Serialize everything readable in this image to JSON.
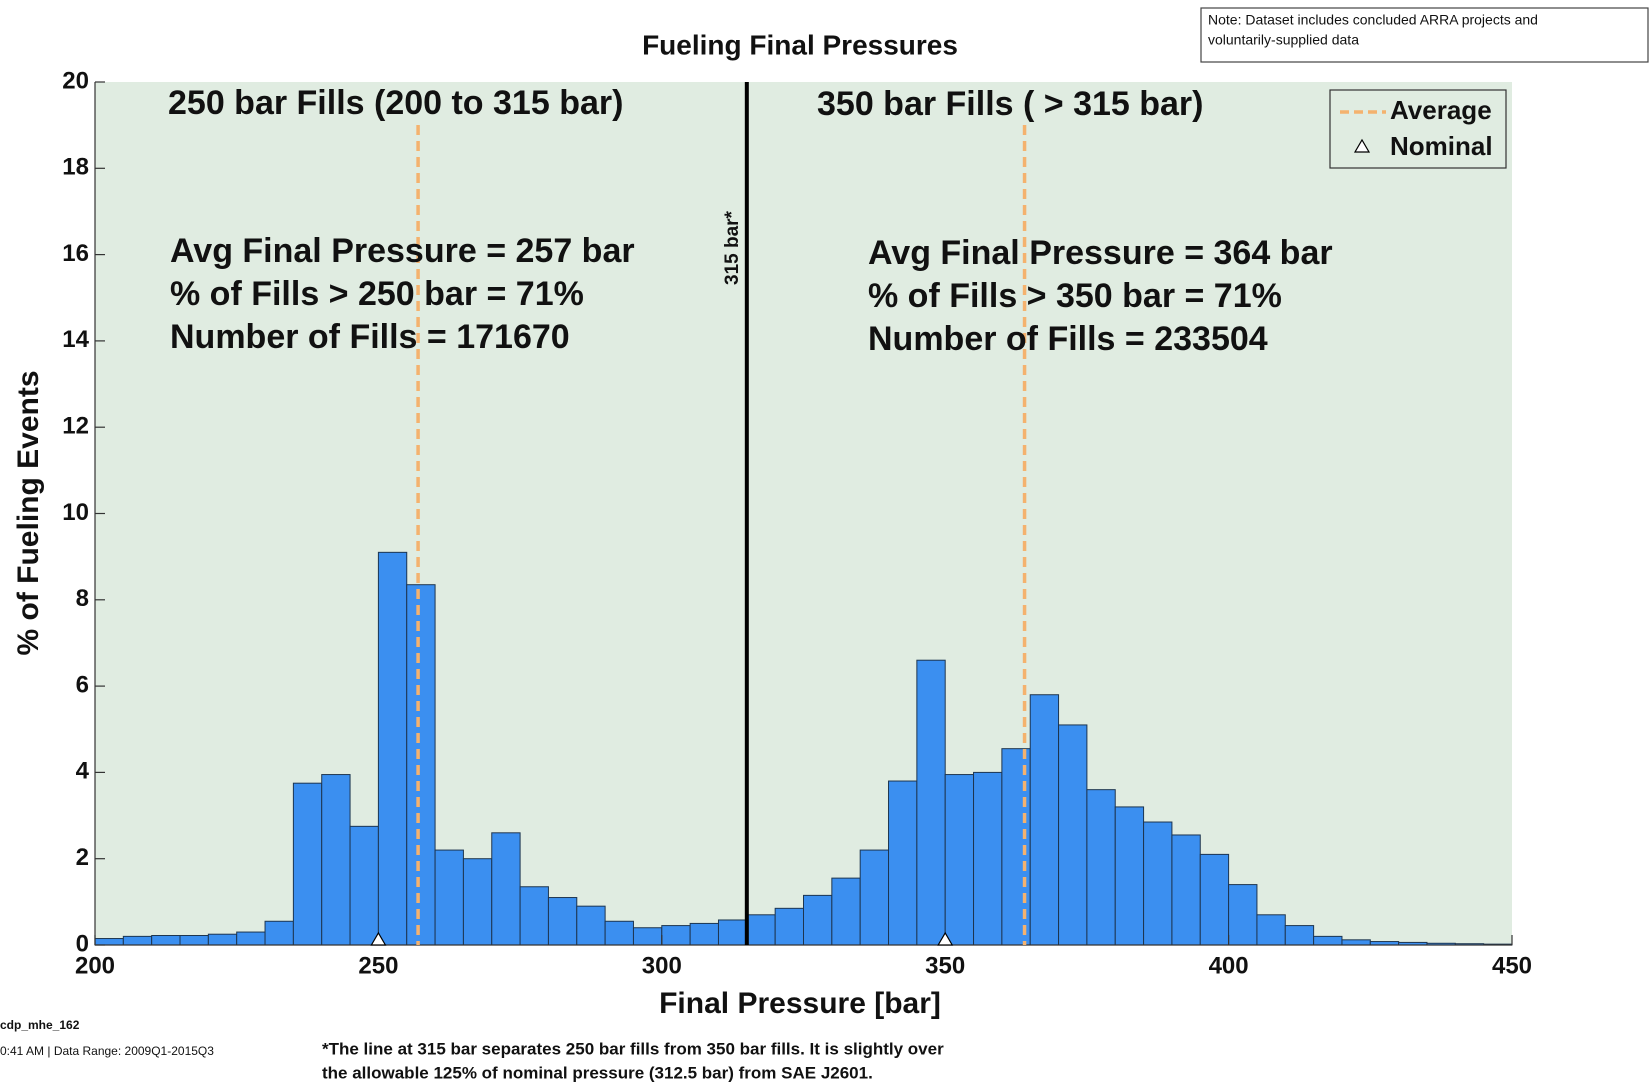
{
  "chart_data": {
    "type": "histogram",
    "title": "Fueling Final Pressures",
    "note": [
      "Note: Dataset includes concluded ARRA projects and",
      "voluntarily-supplied data"
    ],
    "xlabel": "Final Pressure [bar]",
    "ylabel": "% of Fueling Events",
    "color": "#3b8ff0",
    "bins": [
      200,
      205,
      210,
      215,
      220,
      225,
      230,
      235,
      240,
      245,
      250,
      255,
      260,
      265,
      270,
      275,
      280,
      285,
      290,
      295,
      300,
      305,
      310,
      315,
      320,
      325,
      330,
      335,
      340,
      345,
      350,
      355,
      360,
      365,
      370,
      375,
      380,
      385,
      390,
      395,
      400,
      405,
      410,
      415,
      420,
      425,
      430,
      435,
      440,
      445,
      450
    ],
    "values": [
      0.15,
      0.2,
      0.22,
      0.22,
      0.25,
      0.3,
      0.55,
      3.75,
      3.95,
      2.75,
      9.1,
      8.35,
      2.2,
      2.0,
      2.6,
      1.35,
      1.1,
      0.9,
      0.55,
      0.4,
      0.45,
      0.5,
      0.58,
      0.7,
      0.85,
      1.15,
      1.55,
      2.2,
      3.8,
      6.6,
      3.95,
      4.0,
      4.55,
      5.8,
      5.1,
      3.6,
      3.2,
      2.85,
      2.55,
      2.1,
      1.4,
      0.7,
      0.45,
      0.2,
      0.12,
      0.08,
      0.06,
      0.04,
      0.03,
      0.02
    ],
    "xlim": [
      200,
      450
    ],
    "ylim": [
      0,
      20
    ],
    "xticks": [
      200,
      250,
      300,
      350,
      400,
      450
    ],
    "yticks": [
      0,
      2,
      4,
      6,
      8,
      10,
      12,
      14,
      16,
      18,
      20
    ],
    "divider": {
      "value": 315,
      "label": "315 bar*"
    },
    "regions": [
      {
        "title": "250 bar Fills (200 to 315 bar)",
        "stats": [
          "Avg Final Pressure = 257 bar",
          "% of Fills > 250 bar = 71%",
          "Number of Fills = 171670"
        ],
        "average": 257,
        "nominal": 250
      },
      {
        "title": "350 bar Fills ( > 315 bar)",
        "stats": [
          "Avg Final Pressure = 364 bar",
          "% of Fills > 350 bar = 71%",
          "Number of Fills = 233504"
        ],
        "average": 364,
        "nominal": 350
      }
    ],
    "average_color": "#f4b26e",
    "legend": {
      "position": "upper right",
      "average": "Average",
      "nominal": "Nominal"
    },
    "footer": [
      "cdp_mhe_162",
      "0:41 AM  | Data Range: 2009Q1-2015Q3"
    ],
    "footnote": [
      "*The line at 315 bar separates 250 bar fills from 350 bar fills.  It is slightly over",
      "the allowable 125% of nominal pressure (312.5 bar) from SAE J2601."
    ]
  }
}
